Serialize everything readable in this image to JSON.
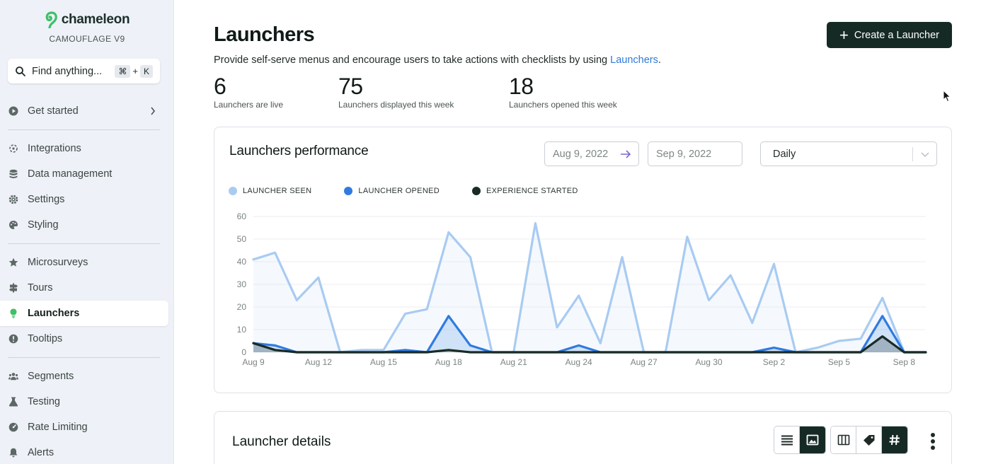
{
  "brand": {
    "name": "chameleon",
    "subtitle": "CAMOUFLAGE V9"
  },
  "search": {
    "label": "Find anything...",
    "shortcut_key1": "⌘",
    "shortcut_plus": "+",
    "shortcut_key2": "K"
  },
  "sidebar": {
    "items": [
      {
        "label": "Get started",
        "icon": "play-circle-icon"
      },
      {
        "label": "Integrations",
        "icon": "integrations-icon"
      },
      {
        "label": "Data management",
        "icon": "database-icon"
      },
      {
        "label": "Settings",
        "icon": "gear-icon"
      },
      {
        "label": "Styling",
        "icon": "palette-icon"
      },
      {
        "label": "Microsurveys",
        "icon": "star-icon"
      },
      {
        "label": "Tours",
        "icon": "signpost-icon"
      },
      {
        "label": "Launchers",
        "icon": "lightbulb-icon"
      },
      {
        "label": "Tooltips",
        "icon": "tooltip-icon"
      },
      {
        "label": "Segments",
        "icon": "users-icon"
      },
      {
        "label": "Testing",
        "icon": "flask-icon"
      },
      {
        "label": "Rate Limiting",
        "icon": "gauge-icon"
      },
      {
        "label": "Alerts",
        "icon": "bell-icon"
      }
    ],
    "active": "Launchers"
  },
  "header": {
    "title": "Launchers",
    "create_label": "Create a Launcher",
    "subtitle_prefix": "Provide self-serve menus and encourage users to take actions with checklists by using ",
    "subtitle_link": "Launchers",
    "subtitle_suffix": "."
  },
  "stats": [
    {
      "value": "6",
      "label": "Launchers are live"
    },
    {
      "value": "75",
      "label": "Launchers displayed this week"
    },
    {
      "value": "18",
      "label": "Launchers opened this week"
    }
  ],
  "performance": {
    "title": "Launchers performance",
    "date_from": "Aug 9, 2022",
    "date_to": "Sep 9, 2022",
    "interval": "Daily"
  },
  "colors": {
    "seen": "#a9cbf2",
    "opened": "#2f7be0",
    "started": "#182b26",
    "accent": "#162a25"
  },
  "chart_data": {
    "type": "line",
    "x": [
      "Aug 9",
      "Aug 10",
      "Aug 11",
      "Aug 12",
      "Aug 13",
      "Aug 14",
      "Aug 15",
      "Aug 16",
      "Aug 17",
      "Aug 18",
      "Aug 19",
      "Aug 20",
      "Aug 21",
      "Aug 22",
      "Aug 23",
      "Aug 24",
      "Aug 25",
      "Aug 26",
      "Aug 27",
      "Aug 28",
      "Aug 29",
      "Aug 30",
      "Aug 31",
      "Sep 1",
      "Sep 2",
      "Sep 3",
      "Sep 4",
      "Sep 5",
      "Sep 6",
      "Sep 7",
      "Sep 8",
      "Sep 9"
    ],
    "x_tick_labels": [
      "Aug 9",
      "Aug 12",
      "Aug 15",
      "Aug 18",
      "Aug 21",
      "Aug 24",
      "Aug 27",
      "Aug 30",
      "Sep 2",
      "Sep 5",
      "Sep 8"
    ],
    "y_ticks": [
      0,
      10,
      20,
      30,
      40,
      50,
      60
    ],
    "ylim": [
      0,
      60
    ],
    "legend_placement": "top-left",
    "series": [
      {
        "name": "LAUNCHER SEEN",
        "values": [
          41,
          44,
          23,
          33,
          0,
          1,
          1,
          17,
          19,
          53,
          42,
          0,
          0,
          57,
          11,
          25,
          4,
          42,
          0,
          0,
          51,
          23,
          34,
          13,
          39,
          0,
          2,
          5,
          6,
          24,
          0,
          0
        ]
      },
      {
        "name": "LAUNCHER OPENED",
        "values": [
          4,
          3,
          0,
          0,
          0,
          0,
          0,
          1,
          0,
          16,
          3,
          0,
          0,
          0,
          0,
          3,
          0,
          0,
          0,
          0,
          0,
          0,
          0,
          0,
          2,
          0,
          0,
          0,
          0,
          16,
          0,
          0
        ]
      },
      {
        "name": "EXPERIENCE STARTED",
        "values": [
          4,
          1,
          0,
          0,
          0,
          0,
          0,
          0,
          0,
          1,
          0,
          0,
          0,
          0,
          0,
          0,
          0,
          0,
          0,
          0,
          0,
          0,
          0,
          0,
          0,
          0,
          0,
          0,
          0,
          7,
          0,
          0
        ]
      }
    ]
  },
  "details": {
    "title": "Launcher details"
  }
}
